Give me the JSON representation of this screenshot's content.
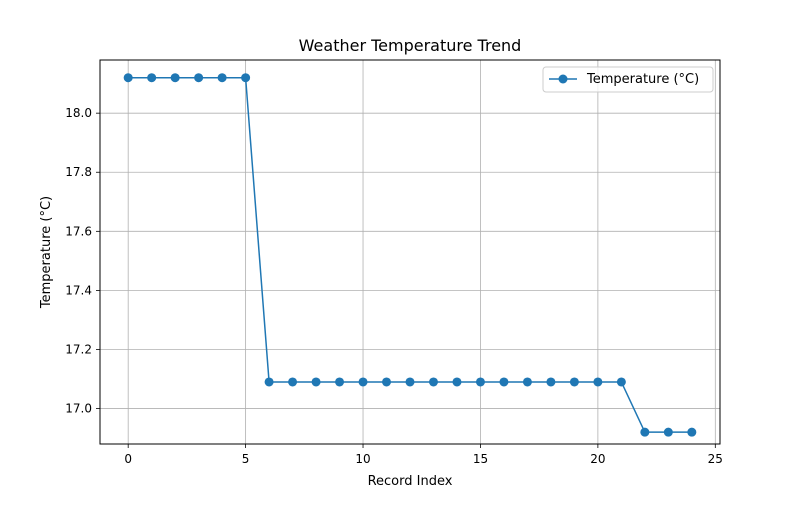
{
  "chart_data": {
    "type": "line",
    "title": "Weather Temperature Trend",
    "xlabel": "Record Index",
    "ylabel": "Temperature (°C)",
    "xlim": [
      -1.2,
      25.2
    ],
    "ylim": [
      16.88,
      18.18
    ],
    "xticks": [
      0,
      5,
      10,
      15,
      20,
      25
    ],
    "yticks": [
      17.0,
      17.2,
      17.4,
      17.6,
      17.8,
      18.0
    ],
    "xtick_labels": [
      "0",
      "5",
      "10",
      "15",
      "20",
      "25"
    ],
    "ytick_labels": [
      "17.0",
      "17.2",
      "17.4",
      "17.6",
      "17.8",
      "18.0"
    ],
    "grid": true,
    "legend_position": "top-right",
    "series": [
      {
        "name": "Temperature (°C)",
        "color": "#1f77b4",
        "marker": "circle",
        "x": [
          0,
          1,
          2,
          3,
          4,
          5,
          6,
          7,
          8,
          9,
          10,
          11,
          12,
          13,
          14,
          15,
          16,
          17,
          18,
          19,
          20,
          21,
          22,
          23,
          24
        ],
        "y": [
          18.12,
          18.12,
          18.12,
          18.12,
          18.12,
          18.12,
          17.09,
          17.09,
          17.09,
          17.09,
          17.09,
          17.09,
          17.09,
          17.09,
          17.09,
          17.09,
          17.09,
          17.09,
          17.09,
          17.09,
          17.09,
          17.09,
          16.92,
          16.92,
          16.92
        ]
      }
    ]
  }
}
